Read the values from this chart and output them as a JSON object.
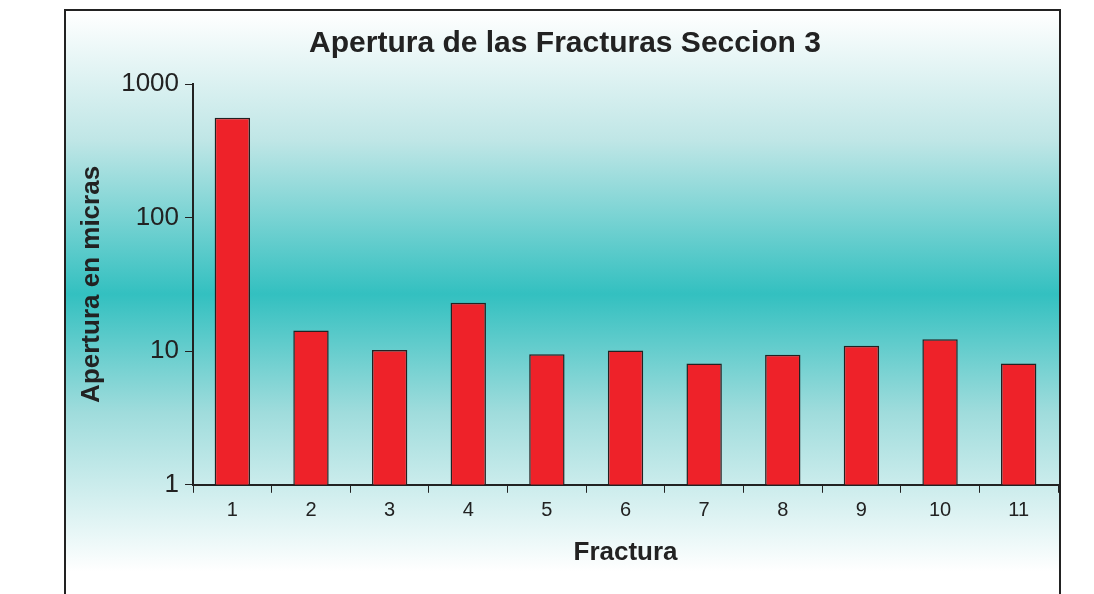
{
  "chart_data": {
    "type": "bar",
    "title": "Apertura de las Fracturas Seccion 3",
    "xlabel": "Fractura",
    "ylabel": "Apertura en micras",
    "categories": [
      "1",
      "2",
      "3",
      "4",
      "5",
      "6",
      "7",
      "8",
      "9",
      "10",
      "11"
    ],
    "values": [
      560,
      14.3,
      10.2,
      23,
      9.5,
      10.1,
      8.1,
      9.4,
      11,
      12.3,
      8.1
    ],
    "color": "#ee2229",
    "log": "y",
    "ylim": [
      1,
      1000
    ],
    "yticks": [
      1,
      10,
      100,
      1000
    ],
    "grid": false,
    "legend": false
  }
}
